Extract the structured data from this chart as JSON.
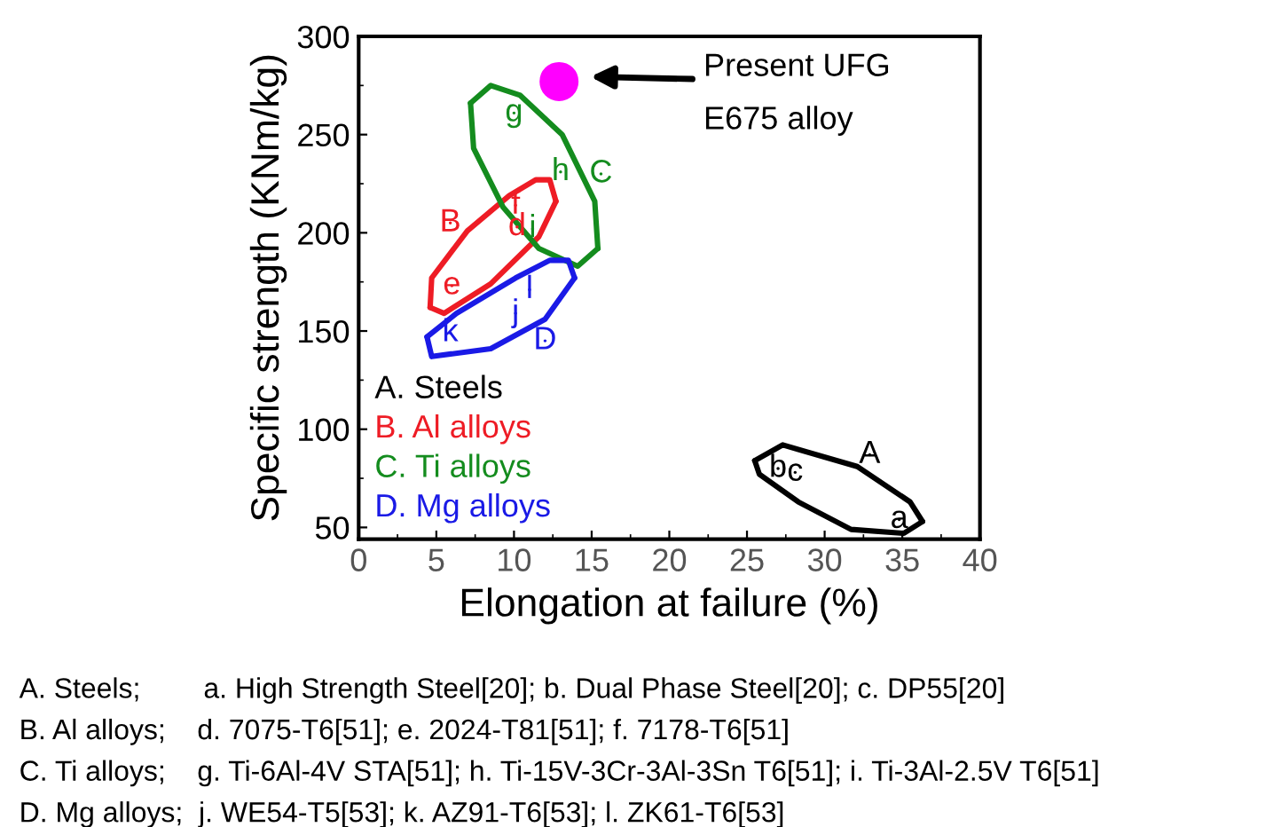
{
  "chart_data": {
    "type": "scatter",
    "xlabel": "Elongation at failure (%)",
    "ylabel": "Specific strength (KNm/kg)",
    "xlim": [
      0,
      40
    ],
    "ylim": [
      44,
      300
    ],
    "xticks": [
      0,
      5,
      10,
      15,
      20,
      25,
      30,
      35,
      40
    ],
    "yticks": [
      50,
      100,
      150,
      200,
      250,
      300
    ],
    "grid": false,
    "legend": "bottom left",
    "marker": "none",
    "line_style": "solid",
    "series": [
      {
        "name": "A. Steels",
        "type": "line",
        "color": "#000000",
        "x": [
          25.5,
          27.3,
          32.1,
          35.5,
          36.3
        ],
        "values": [
          84,
          92,
          81,
          63,
          53
        ]
      },
      {
        "type": "line",
        "color": "#000000",
        "x": [
          25.5,
          25.8,
          28.3,
          31.7,
          35.1,
          36.3
        ],
        "values": [
          84,
          77,
          63,
          49,
          47,
          53
        ]
      },
      {
        "name": "B. Al alloys",
        "type": "line",
        "color": "#ee1c25",
        "x": [
          4.6,
          4.7,
          7,
          9.7,
          11.4,
          12.3,
          12.7
        ],
        "values": [
          162,
          177,
          201,
          219,
          227,
          227,
          216
        ]
      },
      {
        "type": "line",
        "color": "#ee1c25",
        "x": [
          4.6,
          5.5,
          8.5,
          11.6,
          12.7
        ],
        "values": [
          162,
          159,
          174,
          198,
          216
        ]
      },
      {
        "name": "C. Ti alloys",
        "type": "line",
        "color": "#148c1e",
        "x": [
          7.2,
          8.5,
          10.4,
          13.1,
          15.2,
          15.4
        ],
        "values": [
          266,
          275,
          270,
          250,
          216,
          192
        ]
      },
      {
        "type": "line",
        "color": "#148c1e",
        "x": [
          7.2,
          7.4,
          9.3,
          11.6,
          14.1,
          15.4
        ],
        "values": [
          266,
          243,
          213,
          192,
          183,
          192
        ]
      },
      {
        "name": "D. Mg alloys",
        "type": "line",
        "color": "#1a1ae6",
        "x": [
          4.4,
          6.3,
          10.1,
          12.3,
          13.5,
          13.9
        ],
        "values": [
          147,
          159,
          177,
          186,
          186,
          177
        ]
      },
      {
        "type": "line",
        "color": "#1a1ae6",
        "x": [
          4.4,
          4.7,
          8.5,
          12,
          13.9
        ],
        "values": [
          147,
          137,
          141,
          156,
          177
        ]
      },
      {
        "color": "#000000",
        "x": [
          34.8,
          27,
          28.1,
          32.9
        ],
        "values": [
          54,
          80,
          78,
          87
        ],
        "value_labels": [
          "a",
          "b",
          "c",
          "A"
        ]
      },
      {
        "color": "#ee1c25",
        "x": [
          10.2,
          6,
          10.1,
          5.9
        ],
        "values": [
          203,
          173,
          214,
          205
        ],
        "value_labels": [
          "d",
          "e",
          "f",
          "B"
        ]
      },
      {
        "color": "#148c1e",
        "x": [
          10,
          13,
          11.2,
          15.6
        ],
        "values": [
          261,
          231,
          202,
          230
        ],
        "value_labels": [
          "g",
          "h",
          "i",
          "C"
        ]
      },
      {
        "color": "#1a1ae6",
        "x": [
          10.1,
          5.9,
          11,
          12
        ],
        "values": [
          159,
          149,
          171,
          145
        ],
        "value_labels": [
          "j",
          "k",
          "l",
          "D"
        ]
      },
      {
        "color": "#ff00ff",
        "marker": "circle",
        "x": [
          12.9
        ],
        "values": [
          277
        ]
      }
    ],
    "annotations": [
      "Present UFG\nE675 alloy",
      "A. Steels;        a. High Strength Steel[20]; b. Dual Phase Steel[20]; c. DP55[20]",
      "B. Al alloys;    d. 7075-T6[51]; e. 2024-T81[51]; f. 7178-T6[51]",
      "C. Ti alloys;    g. Ti-6Al-4V STA[51]; h. Ti-15V-3Cr-3Al-3Sn T6[51]; i. Ti-3Al-2.5V T6[51]",
      "D. Mg alloys;  j. WE54-T5[53]; k. AZ91-T6[53]; l. ZK61-T6[53]"
    ]
  }
}
